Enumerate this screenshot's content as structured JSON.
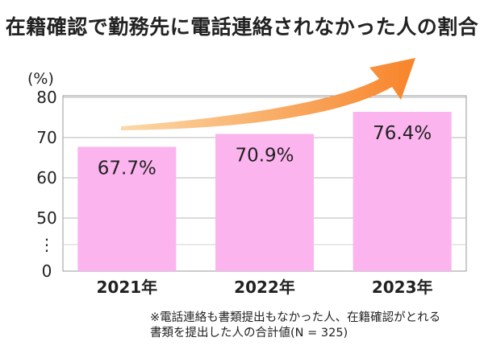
{
  "chart_data": {
    "type": "bar",
    "title": "在籍確認で勤務先に電話連絡されなかった人の割合",
    "ylabel": "(%)",
    "categories": [
      "2021年",
      "2022年",
      "2023年"
    ],
    "values": [
      67.7,
      70.9,
      76.4
    ],
    "data_labels": [
      "67.7%",
      "70.9%",
      "76.4%"
    ],
    "y_ticks": [
      "80",
      "70",
      "60",
      "50",
      "⋮",
      "0"
    ],
    "ylim": [
      0,
      80
    ],
    "axis_break": true,
    "grid": true,
    "bar_color": "#fbb4ee",
    "arrow_color": "#f7842a",
    "footnote": [
      "※電話連絡も書類提出もなかった人、在籍確認がとれる",
      "書類を提出した人の合計値(N = 325)"
    ]
  }
}
